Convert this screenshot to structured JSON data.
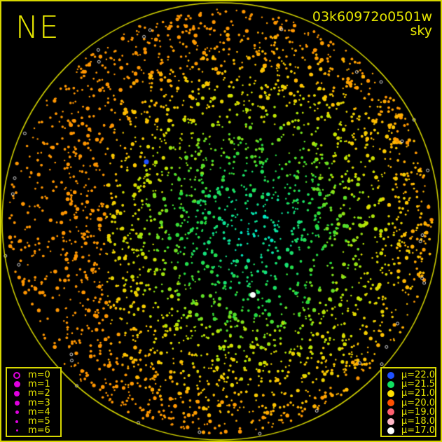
{
  "header": {
    "direction": "NE",
    "image_id": "03k60972o0501w",
    "type": "sky"
  },
  "magnitude_legend": [
    {
      "label": "m=0",
      "size": 10,
      "hollow": true
    },
    {
      "label": "m=1",
      "size": 9
    },
    {
      "label": "m=2",
      "size": 8
    },
    {
      "label": "m=3",
      "size": 7
    },
    {
      "label": "m=4",
      "size": 5
    },
    {
      "label": "m=5",
      "size": 4
    },
    {
      "label": "m=6",
      "size": 3
    }
  ],
  "magnitude_color": "#e000e0",
  "surface_brightness_legend": [
    {
      "label": "μ=22.0",
      "color": "#1e50ff"
    },
    {
      "label": "μ=21.5",
      "color": "#10e060"
    },
    {
      "label": "μ=21.0",
      "color": "#ffe000"
    },
    {
      "label": "μ=20.0",
      "color": "#ff5000"
    },
    {
      "label": "μ=19.0",
      "color": "#ff6070"
    },
    {
      "label": "μ=18.0",
      "color": "#ffb8c8"
    },
    {
      "label": "μ=17.0",
      "color": "#ffffff"
    }
  ],
  "colors": {
    "accent": "#e6e600",
    "background": "#000000"
  }
}
